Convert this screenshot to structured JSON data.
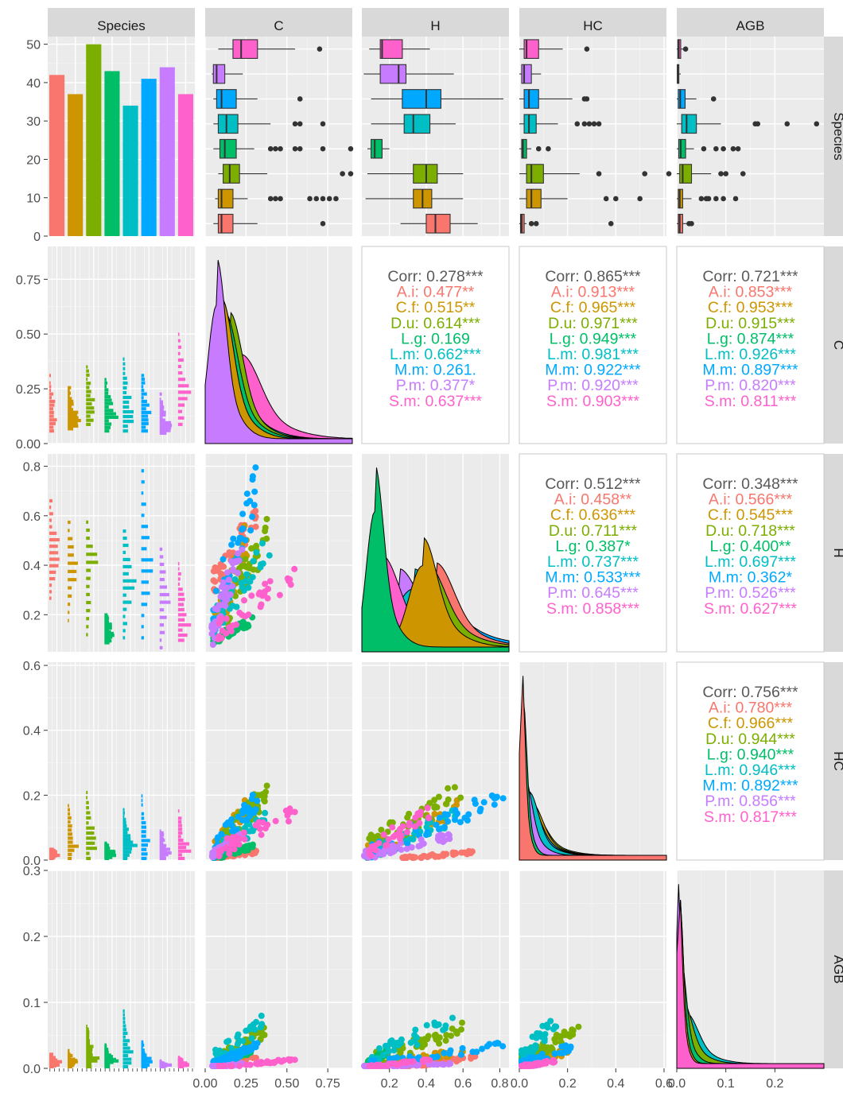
{
  "chart_data": {
    "type": "pairs",
    "variables": [
      "Species",
      "C",
      "H",
      "HC",
      "AGB"
    ],
    "species": [
      "A.i",
      "C.f",
      "D.u",
      "L.g",
      "L.m",
      "M.m",
      "P.m",
      "S.m"
    ],
    "colors": {
      "A.i": "#F8766D",
      "C.f": "#CD9600",
      "D.u": "#7CAE00",
      "L.g": "#00BE67",
      "L.m": "#00BFC4",
      "M.m": "#00A9FF",
      "P.m": "#C77CFF",
      "S.m": "#FF61CC",
      "overall": "#595959"
    },
    "axes": {
      "C": {
        "range": [
          0.0,
          0.9
        ],
        "ticks": [
          0.0,
          0.25,
          0.5,
          0.75
        ],
        "tick_labels": [
          "0.00",
          "0.25",
          "0.50",
          "0.75"
        ]
      },
      "H": {
        "range": [
          0.05,
          0.85
        ],
        "ticks": [
          0.2,
          0.4,
          0.6,
          0.8
        ],
        "tick_labels": [
          "0.2",
          "0.4",
          "0.6",
          "0.8"
        ]
      },
      "HC": {
        "range": [
          0.0,
          0.61
        ],
        "ticks": [
          0.0,
          0.2,
          0.4,
          0.6
        ],
        "tick_labels": [
          "0.0",
          "0.2",
          "0.4",
          "0.6"
        ]
      },
      "AGB": {
        "range": [
          0.0,
          0.3
        ],
        "x_ticks": [
          0.0,
          0.1,
          0.2
        ],
        "x_tick_labels": [
          "0.0",
          "0.1",
          "0.2"
        ],
        "y_ticks": [
          0.0,
          0.1,
          0.2,
          0.3
        ],
        "y_tick_labels": [
          "0.0",
          "0.1",
          "0.2",
          "0.3"
        ]
      },
      "count": {
        "range": [
          0,
          52
        ],
        "ticks": [
          0,
          10,
          20,
          30,
          40,
          50
        ],
        "tick_labels": [
          "0",
          "10",
          "20",
          "30",
          "40",
          "50"
        ]
      }
    },
    "species_counts": [
      42,
      37,
      50,
      43,
      34,
      41,
      44,
      37
    ],
    "boxplots": {
      "C": {
        "A.i": [
          0.05,
          0.08,
          0.1,
          0.17,
          0.32
        ],
        "C.f": [
          0.06,
          0.08,
          0.1,
          0.17,
          0.26
        ],
        "D.u": [
          0.08,
          0.11,
          0.15,
          0.21,
          0.38
        ],
        "L.g": [
          0.05,
          0.09,
          0.12,
          0.19,
          0.3
        ],
        "L.m": [
          0.05,
          0.08,
          0.13,
          0.2,
          0.4
        ],
        "M.m": [
          0.05,
          0.07,
          0.1,
          0.19,
          0.32
        ],
        "P.m": [
          0.04,
          0.05,
          0.07,
          0.12,
          0.23
        ],
        "S.m": [
          0.08,
          0.17,
          0.22,
          0.32,
          0.55
        ]
      },
      "H": {
        "A.i": [
          0.26,
          0.4,
          0.45,
          0.53,
          0.68
        ],
        "C.f": [
          0.07,
          0.33,
          0.38,
          0.43,
          0.6
        ],
        "D.u": [
          0.08,
          0.33,
          0.4,
          0.46,
          0.6
        ],
        "L.g": [
          0.08,
          0.1,
          0.12,
          0.16,
          0.2
        ],
        "L.m": [
          0.1,
          0.28,
          0.33,
          0.42,
          0.56
        ],
        "M.m": [
          0.1,
          0.27,
          0.4,
          0.48,
          0.82
        ],
        "P.m": [
          0.06,
          0.15,
          0.25,
          0.29,
          0.55
        ],
        "S.m": [
          0.09,
          0.15,
          0.16,
          0.27,
          0.42
        ]
      },
      "HC": {
        "A.i": [
          0.0,
          0.005,
          0.01,
          0.02,
          0.03
        ],
        "C.f": [
          0.0,
          0.03,
          0.05,
          0.09,
          0.2
        ],
        "D.u": [
          0.0,
          0.03,
          0.05,
          0.1,
          0.25
        ],
        "L.g": [
          0.0,
          0.01,
          0.015,
          0.03,
          0.05
        ],
        "L.m": [
          0.0,
          0.02,
          0.04,
          0.07,
          0.16
        ],
        "M.m": [
          0.0,
          0.02,
          0.04,
          0.08,
          0.22
        ],
        "P.m": [
          0.0,
          0.01,
          0.02,
          0.05,
          0.09
        ],
        "S.m": [
          0.0,
          0.02,
          0.03,
          0.08,
          0.18
        ]
      },
      "AGB": {
        "A.i": [
          0.0,
          0.003,
          0.006,
          0.012,
          0.02
        ],
        "C.f": [
          0.0,
          0.003,
          0.006,
          0.012,
          0.03
        ],
        "D.u": [
          0.0,
          0.006,
          0.012,
          0.03,
          0.07
        ],
        "L.g": [
          0.0,
          0.004,
          0.008,
          0.018,
          0.035
        ],
        "L.m": [
          0.0,
          0.01,
          0.02,
          0.04,
          0.09
        ],
        "M.m": [
          0.0,
          0.003,
          0.007,
          0.017,
          0.04
        ],
        "P.m": [
          0.0,
          0.001,
          0.002,
          0.004,
          0.008
        ],
        "S.m": [
          0.0,
          0.002,
          0.004,
          0.008,
          0.015
        ]
      }
    },
    "outliers": {
      "C": {
        "A.i": [
          0.72
        ],
        "C.f": [
          0.4,
          0.43,
          0.46,
          0.64,
          0.68,
          0.72,
          0.76,
          0.8
        ],
        "D.u": [
          0.84,
          0.89
        ],
        "L.g": [
          0.4,
          0.43,
          0.46,
          0.55,
          0.58,
          0.72,
          0.89
        ],
        "L.m": [
          0.55,
          0.58,
          0.72
        ],
        "M.m": [
          0.58
        ],
        "P.m": [],
        "S.m": [
          0.7
        ]
      },
      "H": {},
      "HC": {
        "A.i": [
          0.05,
          0.07,
          0.38
        ],
        "C.f": [
          0.36,
          0.4,
          0.5
        ],
        "D.u": [
          0.33,
          0.52,
          0.62
        ],
        "L.g": [
          0.08,
          0.12
        ],
        "L.m": [
          0.24,
          0.27,
          0.29,
          0.31,
          0.33
        ],
        "M.m": [
          0.27,
          0.28
        ],
        "P.m": [],
        "S.m": [
          0.28
        ]
      },
      "AGB": {
        "A.i": [
          0.025,
          0.03
        ],
        "C.f": [
          0.05,
          0.06,
          0.065,
          0.08,
          0.095,
          0.12
        ],
        "D.u": [
          0.09,
          0.1,
          0.135
        ],
        "L.g": [
          0.055,
          0.08,
          0.095,
          0.115,
          0.125
        ],
        "L.m": [
          0.16,
          0.165,
          0.225,
          0.285
        ],
        "M.m": [
          0.075
        ],
        "P.m": [],
        "S.m": [
          0.018
        ]
      }
    },
    "correlations": {
      "C-H": {
        "overall": "0.278***",
        "values": [
          "0.477**",
          "0.515**",
          "0.614***",
          "0.169",
          "0.662***",
          "0.261.",
          "0.377*",
          "0.637***"
        ]
      },
      "C-HC": {
        "overall": "0.865***",
        "values": [
          "0.913***",
          "0.965***",
          "0.971***",
          "0.949***",
          "0.981***",
          "0.922***",
          "0.920***",
          "0.903***"
        ]
      },
      "C-AGB": {
        "overall": "0.721***",
        "values": [
          "0.853***",
          "0.953***",
          "0.915***",
          "0.874***",
          "0.926***",
          "0.897***",
          "0.820***",
          "0.811***"
        ]
      },
      "H-HC": {
        "overall": "0.512***",
        "values": [
          "0.458**",
          "0.636***",
          "0.711***",
          "0.387*",
          "0.737***",
          "0.533***",
          "0.645***",
          "0.858***"
        ]
      },
      "H-AGB": {
        "overall": "0.348***",
        "values": [
          "0.566***",
          "0.545***",
          "0.718***",
          "0.400**",
          "0.697***",
          "0.362*",
          "0.526***",
          "0.627***"
        ]
      },
      "HC-AGB": {
        "overall": "0.756***",
        "values": [
          "0.780***",
          "0.966***",
          "0.944***",
          "0.940***",
          "0.946***",
          "0.892***",
          "0.856***",
          "0.817***"
        ]
      }
    },
    "corr_label": "Corr:",
    "legend": "none",
    "grid": true
  }
}
